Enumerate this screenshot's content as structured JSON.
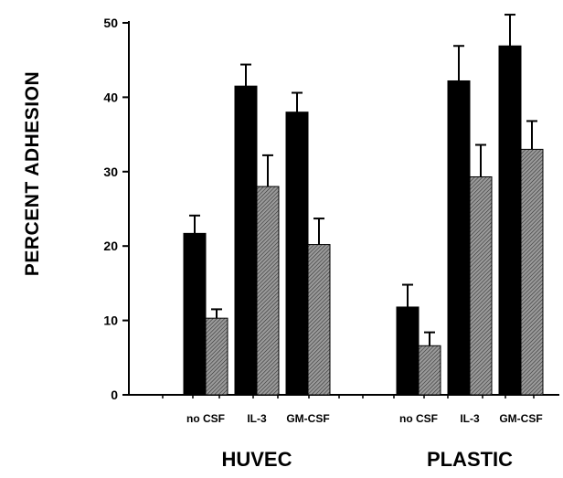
{
  "chart_data": {
    "type": "bar",
    "title": "",
    "xlabel": "",
    "ylabel": "PERCENT ADHESION",
    "ylim": [
      0,
      50
    ],
    "yticks": [
      0,
      10,
      20,
      30,
      40,
      50
    ],
    "grid": false,
    "legend": "none",
    "groups": [
      {
        "name": "HUVEC",
        "categories": [
          "no CSF",
          "IL-3",
          "GM-CSF"
        ],
        "series": [
          {
            "fill": "solid-black",
            "values": [
              21.7,
              41.5,
              38.0
            ],
            "errors": [
              2.4,
              2.9,
              2.6
            ]
          },
          {
            "fill": "gray-hatched",
            "values": [
              10.3,
              28.0,
              20.2
            ],
            "errors": [
              1.2,
              4.2,
              3.5
            ]
          }
        ]
      },
      {
        "name": "PLASTIC",
        "categories": [
          "no CSF",
          "IL-3",
          "GM-CSF"
        ],
        "series": [
          {
            "fill": "solid-black",
            "values": [
              11.8,
              42.2,
              46.9
            ],
            "errors": [
              3.0,
              4.7,
              4.2
            ]
          },
          {
            "fill": "gray-hatched",
            "values": [
              6.6,
              29.3,
              33.0
            ],
            "errors": [
              1.8,
              4.3,
              3.8
            ]
          }
        ]
      }
    ],
    "colors": {
      "solid": "#000000",
      "hatched": "#7a7a7a"
    }
  }
}
